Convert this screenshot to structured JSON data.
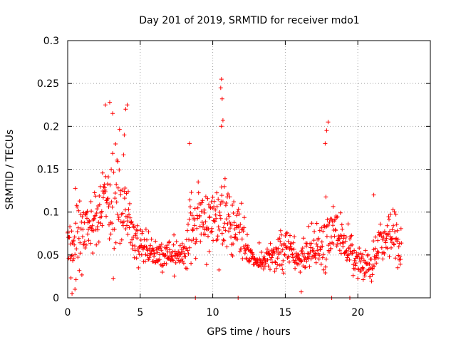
{
  "chart_data": {
    "type": "scatter",
    "title": "Day 201 of 2019, SRMTID for receiver mdo1",
    "xlabel": "GPS time / hours",
    "ylabel": "SRMTID / TECUs",
    "xlim": [
      0,
      25
    ],
    "ylim": [
      0,
      0.3
    ],
    "x_ticks": [
      0,
      5,
      10,
      15,
      20
    ],
    "x_tick_labels": [
      "0",
      "5",
      "10",
      "15",
      "20"
    ],
    "y_ticks": [
      0,
      0.05,
      0.1,
      0.15,
      0.2,
      0.25,
      0.3
    ],
    "y_tick_labels": [
      "0",
      "0.05",
      "0.1",
      "0.15",
      "0.2",
      "0.25",
      "0.3"
    ],
    "grid": true,
    "marker": "plus",
    "series": [
      {
        "name": "SRMTID",
        "color": "#ff0000",
        "x_start": 0.0,
        "x_step": 0.025,
        "envelope_hours": [
          0,
          0.5,
          1,
          1.5,
          2,
          2.5,
          3,
          3.5,
          4,
          4.5,
          5,
          5.5,
          6,
          6.5,
          7,
          7.5,
          8,
          8.5,
          9,
          9.5,
          10,
          10.5,
          11,
          11.5,
          12,
          12.5,
          13,
          13.5,
          14,
          14.5,
          15,
          15.5,
          16,
          16.5,
          17,
          17.5,
          18,
          18.5,
          19,
          19.5,
          20,
          20.5,
          21,
          21.5,
          22,
          22.5,
          23
        ],
        "envelope_mean": [
          0.07,
          0.06,
          0.075,
          0.085,
          0.09,
          0.1,
          0.11,
          0.11,
          0.1,
          0.075,
          0.06,
          0.055,
          0.05,
          0.05,
          0.05,
          0.05,
          0.05,
          0.085,
          0.09,
          0.085,
          0.09,
          0.095,
          0.085,
          0.08,
          0.075,
          0.05,
          0.045,
          0.045,
          0.045,
          0.05,
          0.055,
          0.05,
          0.045,
          0.055,
          0.06,
          0.06,
          0.075,
          0.08,
          0.065,
          0.055,
          0.04,
          0.04,
          0.04,
          0.065,
          0.07,
          0.065,
          0.055
        ],
        "envelope_spread": [
          0.035,
          0.04,
          0.03,
          0.03,
          0.035,
          0.04,
          0.05,
          0.05,
          0.05,
          0.03,
          0.02,
          0.015,
          0.015,
          0.015,
          0.015,
          0.015,
          0.015,
          0.03,
          0.04,
          0.03,
          0.035,
          0.05,
          0.035,
          0.03,
          0.03,
          0.015,
          0.015,
          0.015,
          0.015,
          0.02,
          0.02,
          0.02,
          0.02,
          0.02,
          0.025,
          0.025,
          0.04,
          0.03,
          0.02,
          0.02,
          0.015,
          0.015,
          0.02,
          0.03,
          0.025,
          0.025,
          0.02
        ],
        "spikes": [
          {
            "x": 2.6,
            "y": 0.225
          },
          {
            "x": 2.9,
            "y": 0.228
          },
          {
            "x": 3.1,
            "y": 0.215
          },
          {
            "x": 4.0,
            "y": 0.22
          },
          {
            "x": 4.1,
            "y": 0.225
          },
          {
            "x": 3.9,
            "y": 0.19
          },
          {
            "x": 8.4,
            "y": 0.18
          },
          {
            "x": 10.6,
            "y": 0.255
          },
          {
            "x": 10.55,
            "y": 0.245
          },
          {
            "x": 10.65,
            "y": 0.232
          },
          {
            "x": 10.7,
            "y": 0.207
          },
          {
            "x": 10.6,
            "y": 0.2
          },
          {
            "x": 17.95,
            "y": 0.205
          },
          {
            "x": 17.85,
            "y": 0.195
          },
          {
            "x": 17.75,
            "y": 0.18
          },
          {
            "x": 21.1,
            "y": 0.12
          },
          {
            "x": 8.8,
            "y": 0.0
          },
          {
            "x": 11.75,
            "y": 0.0
          },
          {
            "x": 18.2,
            "y": 0.0
          },
          {
            "x": 19.45,
            "y": 0.0
          },
          {
            "x": 0.3,
            "y": 0.005
          },
          {
            "x": 16.1,
            "y": 0.007
          },
          {
            "x": 0.5,
            "y": 0.01
          }
        ]
      }
    ]
  }
}
